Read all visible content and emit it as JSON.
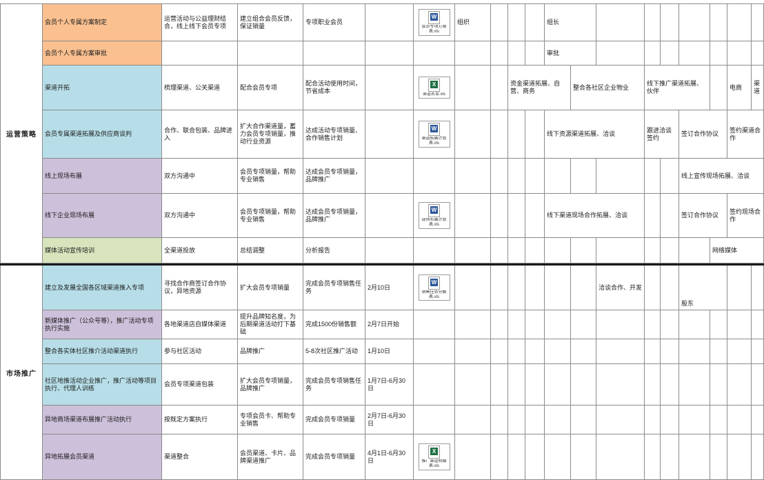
{
  "palette": {
    "orange": "#fac090",
    "cyan": "#b7dee8",
    "purple": "#ccc0da",
    "green": "#d7e4bc",
    "grid": "#8a8a8a",
    "divider": "#1a1a1a",
    "text": "#1c1c1c"
  },
  "groups": [
    {
      "label": "运营策略"
    },
    {
      "label": "市场推广"
    }
  ],
  "rows": [
    {
      "cells": [
        {
          "col": 1,
          "bg": "orange",
          "text": "会员个人专属方案制定"
        },
        {
          "col": 2,
          "text": "运营活动与公益理财结合，线上线下会员专项"
        },
        {
          "col": 3,
          "text": "建立组合会员反馈，保证销量"
        },
        {
          "col": 4,
          "text": "专项职业会员"
        },
        {
          "col": 6,
          "icon": {
            "kind": "doc",
            "caption": "会员专项方案表.xls"
          }
        },
        {
          "col": 7,
          "text": "组织"
        },
        {
          "col": 11,
          "span": 2,
          "text": "组长"
        }
      ]
    },
    {
      "cells": [
        {
          "col": 1,
          "bg": "orange",
          "text": "会员个人专属方案审批"
        },
        {
          "col": 11,
          "span": 2,
          "text": "审批"
        }
      ]
    },
    {
      "cells": [
        {
          "col": 1,
          "bg": "cyan",
          "text": "渠道开拓"
        },
        {
          "col": 2,
          "text": "梳理渠道、公关渠道"
        },
        {
          "col": 3,
          "text": "配合会员专项"
        },
        {
          "col": 4,
          "text": "配合活动使用时间，节省成本"
        },
        {
          "col": 6,
          "icon": {
            "kind": "excel",
            "caption": "渠道名单.xls"
          }
        },
        {
          "col": 9,
          "span": 3,
          "text": "资金渠道拓展、自营、商务"
        },
        {
          "col": 12,
          "span": 2,
          "text": "整合各社区企业物业"
        },
        {
          "col": 14,
          "span": 3,
          "text": "线下推广渠道拓展、伙伴"
        },
        {
          "col": 18,
          "text": "电商"
        },
        {
          "col": 19,
          "text": "渠道"
        }
      ]
    },
    {
      "cells": [
        {
          "col": 1,
          "bg": "cyan",
          "text": "会员专属渠道拓展及供应商谈判"
        },
        {
          "col": 2,
          "text": "合作、联合包装、品牌进入"
        },
        {
          "col": 3,
          "text": "扩大合作渠道量，蓄力会员专项销量，推动行业资源"
        },
        {
          "col": 4,
          "text": "达成活动专项销量、合作销售计划"
        },
        {
          "col": 6,
          "icon": {
            "kind": "doc",
            "caption": "渠道拓展计划表.xls"
          }
        },
        {
          "col": 11,
          "span": 3,
          "text": "线下资源渠道拓展、洽谈"
        },
        {
          "col": 14,
          "span": 2,
          "text": "跟进洽谈签约"
        },
        {
          "col": 16,
          "span": 2,
          "text": "签订合作协议"
        },
        {
          "col": 18,
          "span": 2,
          "text": "签约渠道合作"
        }
      ]
    },
    {
      "cells": [
        {
          "col": 1,
          "bg": "purple",
          "text": "线上现场布展"
        },
        {
          "col": 2,
          "text": "双方沟通中"
        },
        {
          "col": 3,
          "text": "会员专项销量，帮助专业销售"
        },
        {
          "col": 4,
          "text": "达成会员专项销量，品牌推广"
        },
        {
          "col": 16,
          "span": 4,
          "text": "线上宣传现场拓展、洽谈"
        }
      ]
    },
    {
      "cells": [
        {
          "col": 1,
          "bg": "purple",
          "text": "线下企业现场布展"
        },
        {
          "col": 2,
          "text": "双方沟通中"
        },
        {
          "col": 3,
          "text": "会员专项销量，帮助专业销售"
        },
        {
          "col": 4,
          "text": "达成会员专项销量，品牌推广"
        },
        {
          "col": 6,
          "icon": {
            "kind": "doc",
            "caption": "现场布展计划表.xls"
          }
        },
        {
          "col": 11,
          "span": 3,
          "text": "线下渠道现场合作拓展、洽谈"
        },
        {
          "col": 16,
          "span": 2,
          "text": "签订合作协议"
        },
        {
          "col": 18,
          "span": 2,
          "text": "签约现场合作"
        }
      ]
    },
    {
      "cells": [
        {
          "col": 1,
          "bg": "green",
          "text": "媒体活动宣传培训"
        },
        {
          "col": 2,
          "text": "全渠道投放"
        },
        {
          "col": 3,
          "text": "总结调整"
        },
        {
          "col": 4,
          "text": "分析报告"
        },
        {
          "col": 17,
          "span": 3,
          "text": "网络媒体"
        }
      ]
    },
    {
      "cells": [
        {
          "col": 1,
          "bg": "cyan",
          "text": "建立及发展全国各区域渠道推入专项"
        },
        {
          "col": 2,
          "text": "寻找合作商签订合作协议，异地资源"
        },
        {
          "col": 3,
          "text": "扩大会员专项销量"
        },
        {
          "col": 4,
          "text": "完成会员专项销售任务"
        },
        {
          "col": 5,
          "text": "2月10日"
        },
        {
          "col": 6,
          "icon": {
            "kind": "doc",
            "caption": "销售任务分解表.xls"
          }
        },
        {
          "col": 13,
          "text": "洽谈合作、开发"
        },
        {
          "col": 16,
          "span": 2,
          "valign": "bottom",
          "text": "股东"
        }
      ]
    },
    {
      "cells": [
        {
          "col": 1,
          "bg": "purple",
          "text": "新媒体推广（公众号等），推广活动专项执行实施"
        },
        {
          "col": 2,
          "text": "各地渠道店自媒体渠道"
        },
        {
          "col": 3,
          "text": "提升品牌知名度，为后期渠道活动打下基础"
        },
        {
          "col": 4,
          "text": "完成1500份销售额"
        },
        {
          "col": 5,
          "text": "2月7日开始"
        }
      ]
    },
    {
      "cells": [
        {
          "col": 1,
          "bg": "cyan",
          "text": "整合各实体社区推介活动渠道执行"
        },
        {
          "col": 2,
          "text": "参与社区活动"
        },
        {
          "col": 3,
          "text": "品牌推广"
        },
        {
          "col": 4,
          "text": "5-8次社区推广活动"
        },
        {
          "col": 5,
          "text": "1月10日"
        }
      ]
    },
    {
      "cells": [
        {
          "col": 1,
          "bg": "cyan",
          "text": "社区地推活动企业推广，推广活动等项目执行、代理人训练"
        },
        {
          "col": 2,
          "text": "会员专项渠道包装"
        },
        {
          "col": 3,
          "text": "扩大会员专项销量，品牌推广"
        },
        {
          "col": 4,
          "text": "完成会员专项销售任务"
        },
        {
          "col": 5,
          "text": "1月7日-6月30日"
        }
      ]
    },
    {
      "cells": [
        {
          "col": 1,
          "bg": "purple",
          "text": "异地商场渠道布展推广活动执行"
        },
        {
          "col": 2,
          "text": "按既定方案执行"
        },
        {
          "col": 3,
          "text": "专项会员卡、帮助专业销售"
        },
        {
          "col": 4,
          "text": "完成会员专项销量"
        },
        {
          "col": 5,
          "text": "2月7日-6月30日"
        }
      ]
    },
    {
      "cells": [
        {
          "col": 1,
          "bg": "purple",
          "text": "异地拓展会员渠道"
        },
        {
          "col": 2,
          "text": "渠道整合"
        },
        {
          "col": 3,
          "text": "会员渠道、卡片、品牌渠道推广"
        },
        {
          "col": 4,
          "text": "完成会员专项销量"
        },
        {
          "col": 5,
          "text": "4月1日-6月30日"
        },
        {
          "col": 6,
          "icon": {
            "kind": "excel",
            "caption": "推广渠道明细表.xls"
          }
        }
      ]
    }
  ]
}
